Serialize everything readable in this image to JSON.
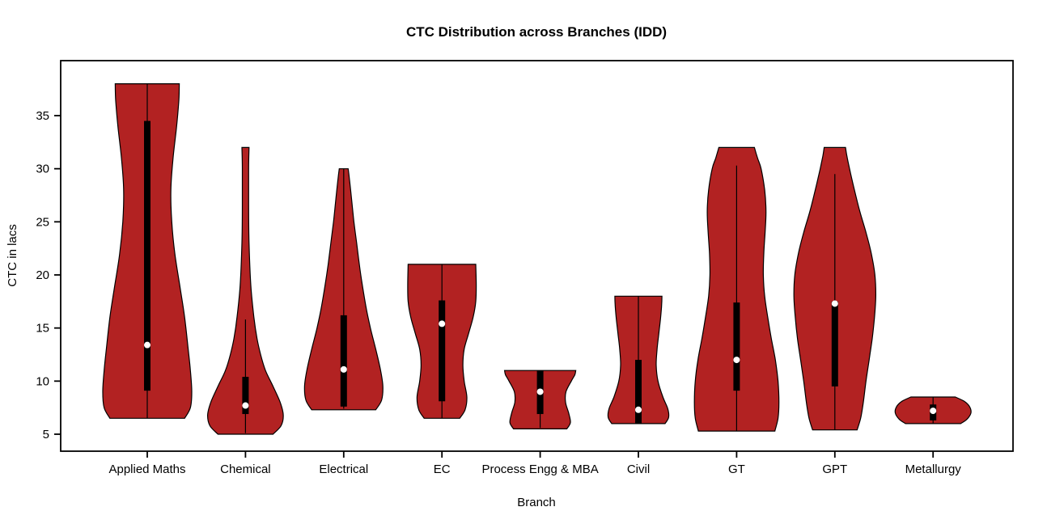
{
  "page": {
    "background": "#ffffff"
  },
  "chart_data": {
    "type": "violin",
    "title": "CTC Distribution across Branches (IDD)",
    "xlabel": "Branch",
    "ylabel": "CTC in lacs",
    "y_ticks": [
      5,
      10,
      15,
      20,
      25,
      30,
      35
    ],
    "ylim": [
      3.4,
      40.2
    ],
    "grid": false,
    "legend": "none",
    "fill_color": "#b22222",
    "outline_color": "#000000",
    "categories": [
      "Applied Maths",
      "Chemical",
      "Electrical",
      "EC",
      "Process Engg & MBA",
      "Civil",
      "GT",
      "GPT",
      "Metallurgy"
    ],
    "series": [
      {
        "name": "Applied Maths",
        "min": 6.5,
        "max": 38,
        "q1": 9.1,
        "q3": 34.5,
        "median": 13.4,
        "shape": [
          [
            6.5,
            0.84
          ],
          [
            7.5,
            0.97
          ],
          [
            9,
            1.0
          ],
          [
            11,
            0.97
          ],
          [
            13,
            0.92
          ],
          [
            16,
            0.84
          ],
          [
            19,
            0.73
          ],
          [
            22,
            0.62
          ],
          [
            25,
            0.55
          ],
          [
            28,
            0.53
          ],
          [
            31,
            0.58
          ],
          [
            34,
            0.66
          ],
          [
            36.5,
            0.71
          ],
          [
            38,
            0.72
          ]
        ]
      },
      {
        "name": "Chemical",
        "min": 5.1,
        "max": 15.8,
        "q1": 6.9,
        "q3": 10.4,
        "median": 7.7,
        "shape": [
          [
            5,
            0.62
          ],
          [
            5.8,
            0.8
          ],
          [
            6.8,
            0.85
          ],
          [
            8,
            0.78
          ],
          [
            9.5,
            0.62
          ],
          [
            11,
            0.45
          ],
          [
            12.5,
            0.34
          ],
          [
            14,
            0.26
          ],
          [
            16,
            0.19
          ],
          [
            19,
            0.12
          ],
          [
            23,
            0.08
          ],
          [
            27,
            0.07
          ],
          [
            30,
            0.07
          ],
          [
            32,
            0.08
          ]
        ]
      },
      {
        "name": "Electrical",
        "min": 7.4,
        "max": 30,
        "q1": 7.6,
        "q3": 16.2,
        "median": 11.1,
        "shape": [
          [
            7.3,
            0.72
          ],
          [
            8.2,
            0.85
          ],
          [
            9.5,
            0.88
          ],
          [
            11,
            0.83
          ],
          [
            13,
            0.72
          ],
          [
            15,
            0.6
          ],
          [
            17,
            0.5
          ],
          [
            19,
            0.42
          ],
          [
            21,
            0.35
          ],
          [
            23,
            0.29
          ],
          [
            25,
            0.23
          ],
          [
            27,
            0.18
          ],
          [
            29,
            0.13
          ],
          [
            30,
            0.1
          ]
        ]
      },
      {
        "name": "EC",
        "min": 6.5,
        "max": 21,
        "q1": 8.1,
        "q3": 17.6,
        "median": 15.4,
        "shape": [
          [
            6.5,
            0.4
          ],
          [
            7.3,
            0.52
          ],
          [
            8.5,
            0.56
          ],
          [
            10,
            0.5
          ],
          [
            11.5,
            0.47
          ],
          [
            13,
            0.5
          ],
          [
            14.5,
            0.6
          ],
          [
            16,
            0.7
          ],
          [
            17.5,
            0.76
          ],
          [
            19,
            0.77
          ],
          [
            21,
            0.76
          ]
        ]
      },
      {
        "name": "Process Engg & MBA",
        "min": 5.6,
        "max": 11,
        "q1": 6.9,
        "q3": 11,
        "median": 9.0,
        "shape": [
          [
            5.5,
            0.6
          ],
          [
            6.1,
            0.68
          ],
          [
            7,
            0.64
          ],
          [
            8,
            0.57
          ],
          [
            9,
            0.58
          ],
          [
            10,
            0.7
          ],
          [
            10.6,
            0.78
          ],
          [
            11,
            0.8
          ]
        ]
      },
      {
        "name": "Civil",
        "min": 6,
        "max": 18,
        "q1": 6.0,
        "q3": 12.0,
        "median": 7.3,
        "shape": [
          [
            6,
            0.6
          ],
          [
            6.6,
            0.68
          ],
          [
            7.4,
            0.66
          ],
          [
            8.5,
            0.55
          ],
          [
            10,
            0.44
          ],
          [
            11.5,
            0.4
          ],
          [
            13,
            0.42
          ],
          [
            14.5,
            0.46
          ],
          [
            16,
            0.5
          ],
          [
            17,
            0.52
          ],
          [
            18,
            0.53
          ]
        ]
      },
      {
        "name": "GT",
        "min": 5.3,
        "max": 30.3,
        "q1": 9.1,
        "q3": 17.4,
        "median": 12.0,
        "shape": [
          [
            5.3,
            0.86
          ],
          [
            6.5,
            0.93
          ],
          [
            8,
            0.95
          ],
          [
            10,
            0.93
          ],
          [
            12,
            0.87
          ],
          [
            14,
            0.78
          ],
          [
            16,
            0.7
          ],
          [
            18,
            0.63
          ],
          [
            20,
            0.6
          ],
          [
            22,
            0.61
          ],
          [
            24,
            0.64
          ],
          [
            26,
            0.66
          ],
          [
            28,
            0.63
          ],
          [
            30,
            0.55
          ],
          [
            31,
            0.47
          ],
          [
            32,
            0.4
          ]
        ]
      },
      {
        "name": "GPT",
        "min": 5.4,
        "max": 29.5,
        "q1": 9.5,
        "q3": 17.5,
        "median": 17.3,
        "shape": [
          [
            5.4,
            0.5
          ],
          [
            6.5,
            0.58
          ],
          [
            8,
            0.64
          ],
          [
            10,
            0.7
          ],
          [
            12,
            0.77
          ],
          [
            14,
            0.84
          ],
          [
            16,
            0.89
          ],
          [
            18,
            0.92
          ],
          [
            20,
            0.9
          ],
          [
            22,
            0.82
          ],
          [
            24,
            0.7
          ],
          [
            26,
            0.56
          ],
          [
            28,
            0.44
          ],
          [
            30,
            0.33
          ],
          [
            31.2,
            0.27
          ],
          [
            32,
            0.24
          ]
        ]
      },
      {
        "name": "Metallurgy",
        "min": 6,
        "max": 8.5,
        "q1": 6.3,
        "q3": 7.8,
        "median": 7.2,
        "shape": [
          [
            6,
            0.62
          ],
          [
            6.4,
            0.76
          ],
          [
            7,
            0.85
          ],
          [
            7.6,
            0.82
          ],
          [
            8.1,
            0.7
          ],
          [
            8.5,
            0.5
          ]
        ]
      }
    ]
  }
}
